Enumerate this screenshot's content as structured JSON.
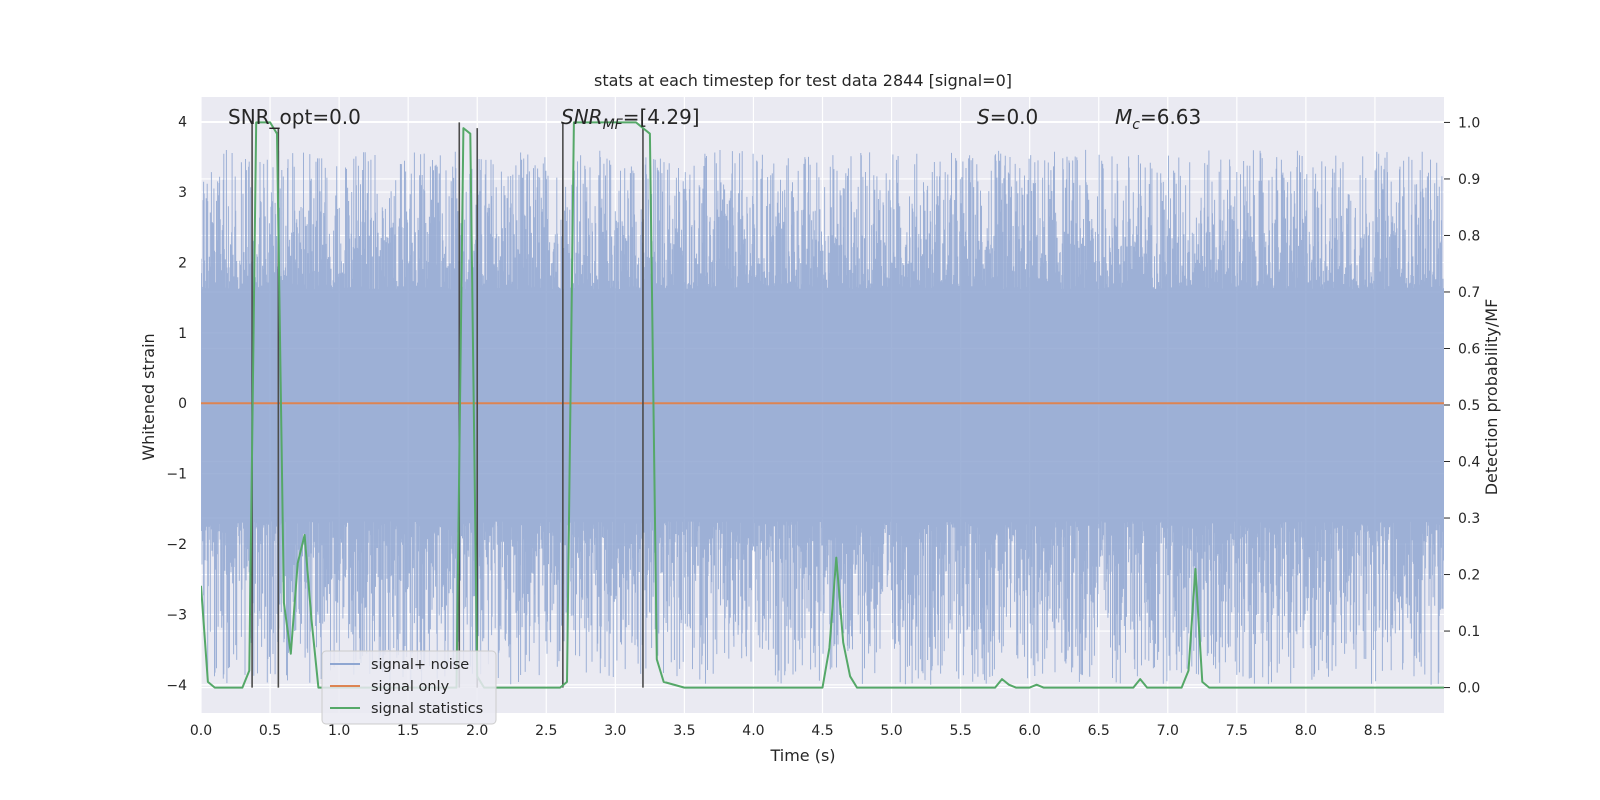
{
  "chart_data": {
    "type": "line",
    "title": "stats at each timestep for test data 2844 [signal=0]",
    "xlabel": "Time (s)",
    "ylabel": "Whitened strain",
    "y2label": "Detection probability/MF",
    "xlim": [
      0.0,
      9.0
    ],
    "ylim": [
      -4.4,
      4.35
    ],
    "y2lim": [
      -0.045,
      1.045
    ],
    "xticks": [
      "0.0",
      "0.5",
      "1.0",
      "1.5",
      "2.0",
      "2.5",
      "3.0",
      "3.5",
      "4.0",
      "4.5",
      "5.0",
      "5.5",
      "6.0",
      "6.5",
      "7.0",
      "7.5",
      "8.0",
      "8.5"
    ],
    "yticks": [
      "4",
      "3",
      "2",
      "1",
      "0",
      "−1",
      "−2",
      "−3",
      "−4"
    ],
    "y2ticks": [
      "1.0",
      "0.9",
      "0.8",
      "0.7",
      "0.6",
      "0.5",
      "0.4",
      "0.3",
      "0.2",
      "0.1",
      "0.0"
    ],
    "grid": true,
    "legend_position": "lower-left",
    "annotations": {
      "snr_opt": "SNR_opt=0.0",
      "snr_mf_prefix": "SNR",
      "snr_mf_sub": "MF",
      "snr_mf_value": "=[4.29]",
      "s_symbol": "S",
      "s_value": "=0.0",
      "mc_symbol": "M",
      "mc_sub": "c",
      "mc_value": "=6.63"
    },
    "series": [
      {
        "name": "signal+ noise",
        "color": "#8fa6d1",
        "description": "whitened noise filling roughly -4 to 3.5",
        "amplitude_range": [
          -4.0,
          3.6
        ]
      },
      {
        "name": "signal only",
        "color": "#dd8452",
        "x": [
          0.0,
          9.0
        ],
        "y": [
          0.0,
          0.0
        ]
      },
      {
        "name": "signal statistics",
        "color": "#55a868",
        "axis": "right",
        "x": [
          0.0,
          0.05,
          0.1,
          0.15,
          0.2,
          0.25,
          0.3,
          0.35,
          0.4,
          0.45,
          0.5,
          0.55,
          0.6,
          0.65,
          0.7,
          0.75,
          0.8,
          0.85,
          0.9,
          0.95,
          1.0,
          1.5,
          1.8,
          1.85,
          1.9,
          1.95,
          2.0,
          2.05,
          2.1,
          2.15,
          2.2,
          2.5,
          2.6,
          2.65,
          2.7,
          2.75,
          3.0,
          3.15,
          3.2,
          3.25,
          3.3,
          3.35,
          3.5,
          4.0,
          4.45,
          4.5,
          4.55,
          4.6,
          4.65,
          4.7,
          4.75,
          5.0,
          5.5,
          5.7,
          5.75,
          5.8,
          5.85,
          5.9,
          5.95,
          6.0,
          6.05,
          6.1,
          6.2,
          6.5,
          6.7,
          6.75,
          6.8,
          6.85,
          6.9,
          7.0,
          7.1,
          7.15,
          7.2,
          7.25,
          7.3,
          7.5,
          8.0,
          8.5,
          9.0
        ],
        "y": [
          0.18,
          0.01,
          0.0,
          0.0,
          0.0,
          0.0,
          0.0,
          0.03,
          1.0,
          1.0,
          1.0,
          0.98,
          0.15,
          0.06,
          0.22,
          0.27,
          0.12,
          0.0,
          0.0,
          0.0,
          0.0,
          0.0,
          0.0,
          0.0,
          0.99,
          0.98,
          0.02,
          0.0,
          0.0,
          0.0,
          0.0,
          0.0,
          0.0,
          0.01,
          1.0,
          1.0,
          1.0,
          1.0,
          0.99,
          0.98,
          0.05,
          0.01,
          0.0,
          0.0,
          0.0,
          0.0,
          0.07,
          0.23,
          0.08,
          0.02,
          0.0,
          0.0,
          0.0,
          0.0,
          0.0,
          0.015,
          0.005,
          0.0,
          0.0,
          0.0,
          0.005,
          0.0,
          0.0,
          0.0,
          0.0,
          0.0,
          0.015,
          0.0,
          0.0,
          0.0,
          0.0,
          0.03,
          0.21,
          0.01,
          0.0,
          0.0,
          0.0,
          0.0,
          0.0
        ]
      }
    ],
    "vertical_markers": [
      {
        "x": 0.37,
        "ymin": 0.0,
        "ymax": 1.0
      },
      {
        "x": 0.56,
        "ymin": 0.0,
        "ymax": 0.99
      },
      {
        "x": 1.87,
        "ymin": 0.0,
        "ymax": 1.0
      },
      {
        "x": 2.0,
        "ymin": 0.0,
        "ymax": 0.99
      },
      {
        "x": 2.62,
        "ymin": 0.0,
        "ymax": 1.0
      },
      {
        "x": 3.2,
        "ymin": 0.0,
        "ymax": 0.99
      }
    ],
    "colors": {
      "background": "#eaeaf2",
      "grid": "#ffffff",
      "marker": "#4c4c4c"
    }
  }
}
